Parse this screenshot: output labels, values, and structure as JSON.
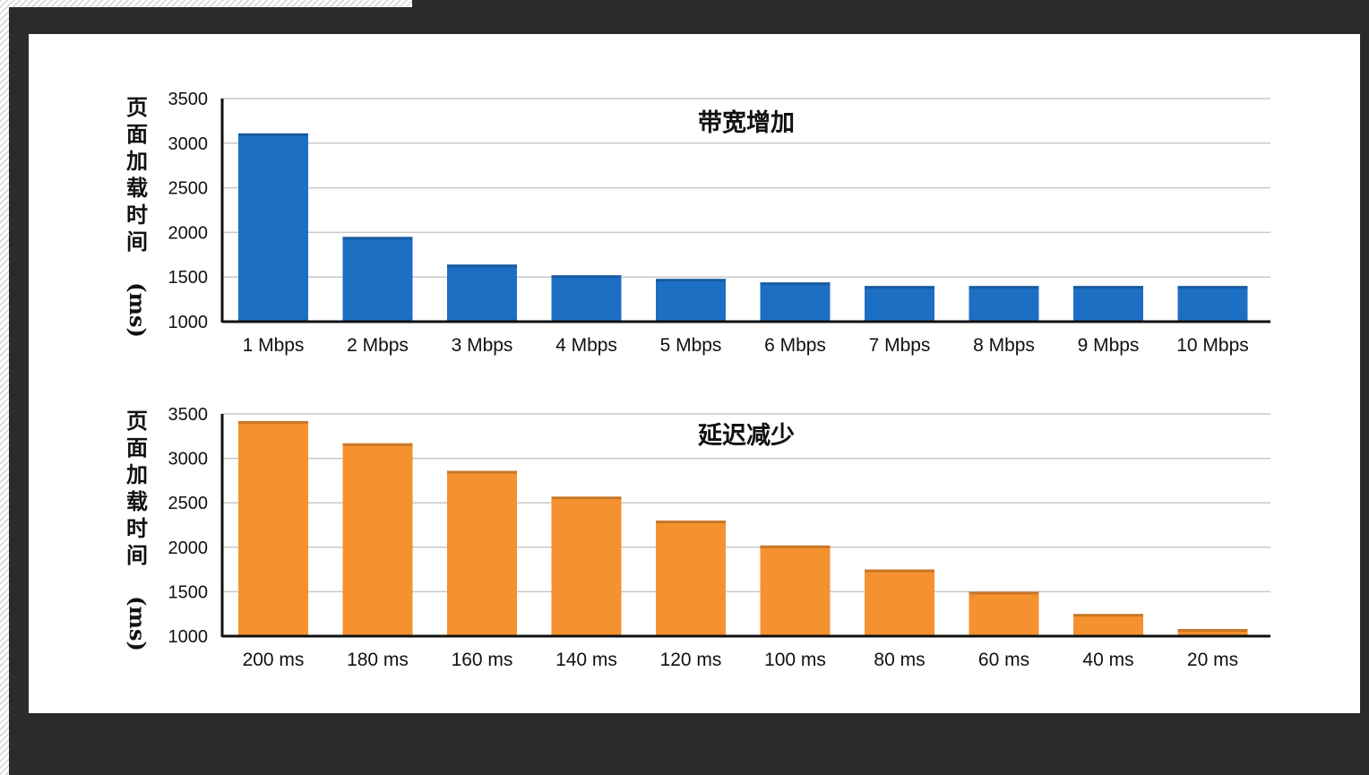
{
  "chart_data": [
    {
      "type": "bar",
      "title": "带宽增加",
      "ylabel": "页面加载时间 (ms)",
      "categories": [
        "1 Mbps",
        "2 Mbps",
        "3 Mbps",
        "4 Mbps",
        "5 Mbps",
        "6 Mbps",
        "7 Mbps",
        "8 Mbps",
        "9 Mbps",
        "10 Mbps"
      ],
      "values": [
        3110,
        1950,
        1640,
        1520,
        1480,
        1440,
        1400,
        1400,
        1400,
        1400
      ],
      "ylim": [
        1000,
        3500
      ],
      "yticks": [
        1000,
        1500,
        2000,
        2500,
        3000,
        3500
      ],
      "grid": true,
      "color": "#1d6fc4"
    },
    {
      "type": "bar",
      "title": "延迟减少",
      "ylabel": "页面加载时间 (ms)",
      "categories": [
        "200 ms",
        "180 ms",
        "160 ms",
        "140 ms",
        "120 ms",
        "100 ms",
        "80 ms",
        "60 ms",
        "40 ms",
        "20 ms"
      ],
      "values": [
        3420,
        3170,
        2860,
        2570,
        2300,
        2020,
        1750,
        1500,
        1250,
        1080
      ],
      "ylim": [
        1000,
        3500
      ],
      "yticks": [
        1000,
        1500,
        2000,
        2500,
        3000,
        3500
      ],
      "grid": true,
      "color": "#f5922f"
    }
  ]
}
